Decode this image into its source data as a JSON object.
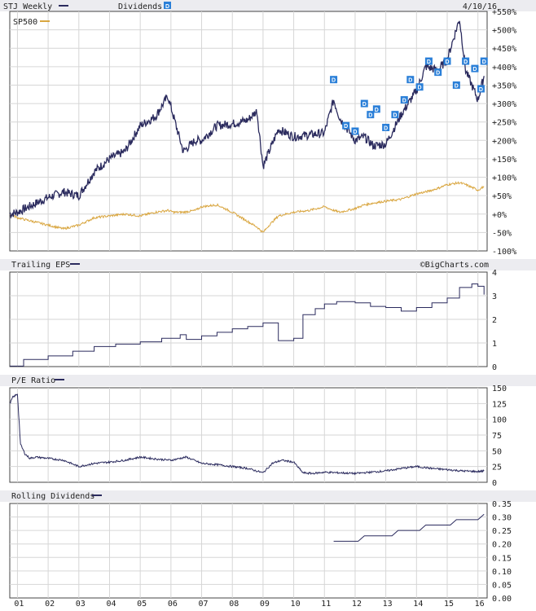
{
  "colors": {
    "stj": "#2b2b5e",
    "sp500": "#d9a640",
    "grid": "#d6d6d6",
    "header_bg": "#ececf0",
    "dividend_badge": "#2a7fd8"
  },
  "header": {
    "stj_label": "STJ Weekly",
    "dividends_label": "Dividends",
    "dividend_badge": "D",
    "date": "4/10/16",
    "sp500_label": "SP500",
    "eps_label": "Trailing EPS",
    "credit": "©BigCharts.com",
    "pe_label": "P/E Ratio",
    "div_label": "Rolling Dividends"
  },
  "x_axis": {
    "labels": [
      "01",
      "02",
      "03",
      "04",
      "05",
      "06",
      "07",
      "08",
      "09",
      "10",
      "11",
      "12",
      "13",
      "14",
      "15",
      "16"
    ]
  },
  "chart_data": [
    {
      "type": "line",
      "title": "STJ Weekly",
      "ylim": [
        -100,
        550
      ],
      "yticks": [
        "+550%",
        "+500%",
        "+450%",
        "+400%",
        "+350%",
        "+300%",
        "+250%",
        "+200%",
        "+150%",
        "+100%",
        "+50%",
        "+0%",
        "-50%",
        "-100%"
      ],
      "x": [
        2000.75,
        2001.0,
        2001.5,
        2002.0,
        2002.5,
        2003.0,
        2003.5,
        2004.0,
        2004.5,
        2005.0,
        2005.5,
        2005.9,
        2006.1,
        2006.4,
        2006.8,
        2007.0,
        2007.5,
        2008.0,
        2008.5,
        2008.8,
        2009.0,
        2009.2,
        2009.5,
        2010.0,
        2010.5,
        2011.0,
        2011.3,
        2011.5,
        2012.0,
        2012.3,
        2012.6,
        2013.0,
        2013.5,
        2014.0,
        2014.3,
        2014.7,
        2015.0,
        2015.4,
        2015.6,
        2016.0,
        2016.2
      ],
      "series": [
        {
          "name": "STJ Weekly",
          "values": [
            0,
            5,
            25,
            45,
            60,
            50,
            115,
            150,
            170,
            240,
            265,
            320,
            260,
            170,
            200,
            200,
            240,
            245,
            255,
            280,
            130,
            170,
            230,
            210,
            215,
            220,
            310,
            260,
            200,
            210,
            185,
            190,
            270,
            335,
            400,
            390,
            420,
            530,
            390,
            310,
            375
          ]
        },
        {
          "name": "SP500",
          "values": [
            0,
            -10,
            -20,
            -30,
            -40,
            -30,
            -10,
            -5,
            0,
            -5,
            5,
            10,
            5,
            5,
            10,
            20,
            25,
            5,
            -20,
            -35,
            -50,
            -30,
            -5,
            5,
            10,
            20,
            10,
            5,
            15,
            25,
            30,
            35,
            40,
            55,
            60,
            70,
            80,
            85,
            80,
            65,
            75
          ]
        }
      ],
      "dividends": [
        {
          "x": 2011.3,
          "y": 365
        },
        {
          "x": 2011.7,
          "y": 240
        },
        {
          "x": 2012.0,
          "y": 225
        },
        {
          "x": 2012.3,
          "y": 300
        },
        {
          "x": 2012.5,
          "y": 270
        },
        {
          "x": 2012.7,
          "y": 285
        },
        {
          "x": 2013.0,
          "y": 235
        },
        {
          "x": 2013.3,
          "y": 270
        },
        {
          "x": 2013.6,
          "y": 310
        },
        {
          "x": 2013.8,
          "y": 365
        },
        {
          "x": 2014.1,
          "y": 345
        },
        {
          "x": 2014.4,
          "y": 415
        },
        {
          "x": 2014.7,
          "y": 385
        },
        {
          "x": 2015.0,
          "y": 415
        },
        {
          "x": 2015.3,
          "y": 350
        },
        {
          "x": 2015.6,
          "y": 415
        },
        {
          "x": 2015.9,
          "y": 395
        },
        {
          "x": 2016.1,
          "y": 340
        },
        {
          "x": 2016.2,
          "y": 415
        }
      ]
    },
    {
      "type": "line",
      "title": "Trailing EPS",
      "ylim": [
        0,
        4
      ],
      "yticks": [
        "4",
        "3",
        "2",
        "1",
        "0"
      ],
      "x": [
        2000.75,
        2001.2,
        2002.0,
        2002.8,
        2003.5,
        2004.2,
        2005.0,
        2005.7,
        2006.3,
        2006.5,
        2007.0,
        2007.5,
        2008.0,
        2008.5,
        2009.0,
        2009.5,
        2010.0,
        2010.3,
        2010.7,
        2011.0,
        2011.4,
        2012.0,
        2012.5,
        2013.0,
        2013.5,
        2014.0,
        2014.5,
        2015.0,
        2015.4,
        2015.8,
        2016.0,
        2016.2
      ],
      "series": [
        {
          "name": "Trailing EPS",
          "values": [
            0.02,
            0.3,
            0.45,
            0.65,
            0.85,
            0.95,
            1.05,
            1.2,
            1.35,
            1.15,
            1.3,
            1.45,
            1.6,
            1.7,
            1.85,
            1.1,
            1.2,
            2.2,
            2.45,
            2.65,
            2.75,
            2.7,
            2.55,
            2.5,
            2.35,
            2.5,
            2.7,
            2.9,
            3.35,
            3.5,
            3.4,
            3.05
          ]
        }
      ]
    },
    {
      "type": "line",
      "title": "P/E Ratio",
      "ylim": [
        0,
        150
      ],
      "yticks": [
        "150",
        "125",
        "100",
        "75",
        "50",
        "25",
        "0"
      ],
      "x": [
        2000.75,
        2000.85,
        2001.0,
        2001.1,
        2001.25,
        2001.4,
        2001.6,
        2002.0,
        2002.5,
        2003.0,
        2003.5,
        2004.0,
        2004.5,
        2005.0,
        2005.5,
        2006.0,
        2006.5,
        2007.0,
        2007.5,
        2008.0,
        2008.5,
        2009.0,
        2009.3,
        2009.6,
        2010.0,
        2010.3,
        2010.6,
        2011.0,
        2011.5,
        2012.0,
        2012.5,
        2013.0,
        2013.5,
        2014.0,
        2014.5,
        2015.0,
        2015.5,
        2016.0,
        2016.2
      ],
      "series": [
        {
          "name": "P/E Ratio",
          "values": [
            125,
            135,
            140,
            60,
            45,
            38,
            40,
            38,
            35,
            25,
            30,
            32,
            35,
            40,
            37,
            35,
            40,
            30,
            28,
            25,
            22,
            15,
            30,
            35,
            32,
            15,
            14,
            16,
            15,
            14,
            16,
            18,
            22,
            25,
            22,
            20,
            18,
            17,
            18
          ]
        }
      ]
    },
    {
      "type": "line",
      "title": "Rolling Dividends",
      "ylim": [
        0.0,
        0.35
      ],
      "yticks": [
        "0.35",
        "0.30",
        "0.25",
        "0.20",
        "0.15",
        "0.10",
        "0.05",
        "0.00"
      ],
      "x": [
        2011.3,
        2012.1,
        2012.3,
        2013.2,
        2013.4,
        2014.1,
        2014.3,
        2015.1,
        2015.3,
        2016.0,
        2016.2
      ],
      "series": [
        {
          "name": "Rolling Dividends",
          "values": [
            0.21,
            0.21,
            0.23,
            0.23,
            0.25,
            0.25,
            0.27,
            0.27,
            0.29,
            0.29,
            0.31
          ]
        }
      ]
    }
  ]
}
